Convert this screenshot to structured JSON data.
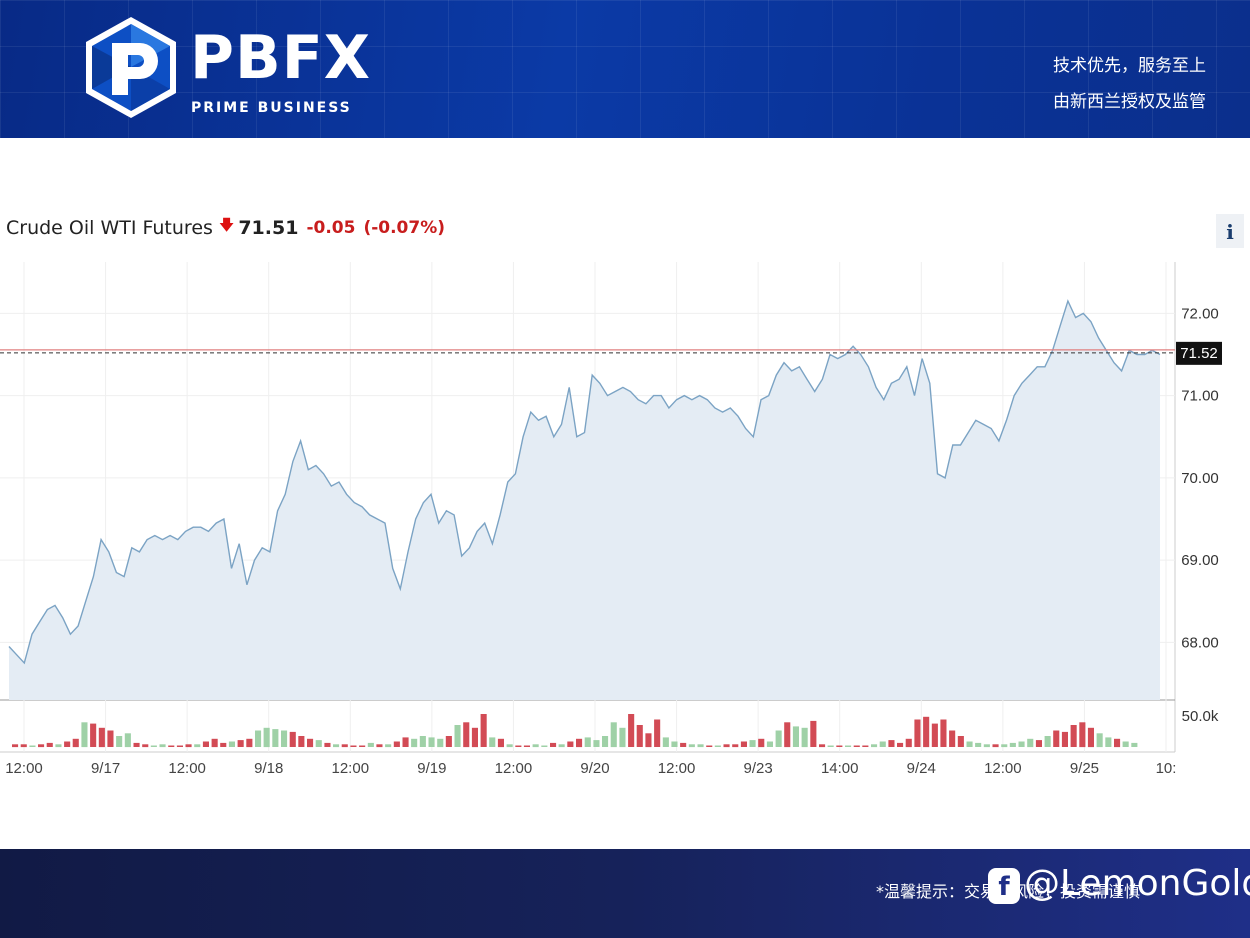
{
  "header": {
    "brand": "PBFX",
    "brand_sub": "PRIME BUSINESS",
    "slogan_line1": "技术优先，服务至上",
    "slogan_line2": "由新西兰授权及监管"
  },
  "instrument": {
    "name": "Crude Oil WTI Futures",
    "direction_icon": "down-arrow-icon",
    "price": "71.51",
    "change": "-0.05",
    "change_pct": "(-0.07%)",
    "info_label": "i"
  },
  "colors": {
    "header_bg": "#0b3aa6",
    "line": "#7ba3c4",
    "area": "#e4ecf4",
    "down": "#d24b55",
    "up": "#9fd1a7",
    "reference_line": "#e08080",
    "last_price_label_bg": "#111111"
  },
  "chart_data": {
    "type": "area",
    "title": "Crude Oil WTI Futures",
    "ylim": [
      67.3,
      72.6
    ],
    "y_ticks": [
      "72.00",
      "71.00",
      "70.00",
      "69.00",
      "68.00"
    ],
    "last_price_label": "71.52",
    "last_price_value": 71.52,
    "volume_tick": "50.0k",
    "x_tick_labels": [
      "12:00",
      "9/17",
      "12:00",
      "9/18",
      "12:00",
      "9/19",
      "12:00",
      "9/20",
      "12:00",
      "9/23",
      "14:00",
      "9/24",
      "12:00",
      "9/25",
      "10:"
    ],
    "grid": true,
    "legend": "none",
    "price": [
      67.95,
      67.85,
      67.75,
      68.1,
      68.25,
      68.4,
      68.45,
      68.3,
      68.1,
      68.2,
      68.5,
      68.8,
      69.25,
      69.1,
      68.85,
      68.8,
      69.15,
      69.1,
      69.25,
      69.3,
      69.25,
      69.3,
      69.25,
      69.35,
      69.4,
      69.4,
      69.35,
      69.45,
      69.5,
      68.9,
      69.2,
      68.7,
      69.0,
      69.15,
      69.1,
      69.6,
      69.8,
      70.2,
      70.45,
      70.1,
      70.15,
      70.05,
      69.9,
      69.95,
      69.8,
      69.7,
      69.65,
      69.55,
      69.5,
      69.45,
      68.9,
      68.65,
      69.1,
      69.5,
      69.7,
      69.8,
      69.45,
      69.6,
      69.55,
      69.05,
      69.15,
      69.35,
      69.45,
      69.2,
      69.55,
      69.95,
      70.05,
      70.5,
      70.8,
      70.7,
      70.75,
      70.5,
      70.65,
      71.1,
      70.5,
      70.55,
      71.25,
      71.15,
      71.0,
      71.05,
      71.1,
      71.05,
      70.95,
      70.9,
      71.0,
      71.0,
      70.85,
      70.95,
      71.0,
      70.95,
      71.0,
      70.95,
      70.85,
      70.8,
      70.85,
      70.75,
      70.6,
      70.5,
      70.95,
      71.0,
      71.25,
      71.4,
      71.3,
      71.35,
      71.2,
      71.05,
      71.2,
      71.5,
      71.45,
      71.5,
      71.6,
      71.5,
      71.35,
      71.1,
      70.95,
      71.15,
      71.2,
      71.35,
      71.0,
      71.45,
      71.15,
      70.05,
      70.0,
      70.4,
      70.4,
      70.55,
      70.7,
      70.65,
      70.6,
      70.45,
      70.7,
      71.0,
      71.15,
      71.25,
      71.35,
      71.35,
      71.55,
      71.85,
      72.15,
      71.95,
      72.0,
      71.9,
      71.7,
      71.55,
      71.4,
      71.3,
      71.55,
      71.5,
      71.5,
      71.55,
      71.5
    ],
    "volume": [
      0.1,
      0.1,
      0.05,
      0.1,
      0.15,
      0.1,
      0.2,
      0.3,
      0.9,
      0.85,
      0.7,
      0.6,
      0.4,
      0.5,
      0.15,
      0.1,
      0.05,
      0.1,
      0.05,
      0.05,
      0.1,
      0.1,
      0.2,
      0.3,
      0.15,
      0.2,
      0.25,
      0.3,
      0.6,
      0.7,
      0.65,
      0.6,
      0.55,
      0.4,
      0.3,
      0.25,
      0.15,
      0.1,
      0.1,
      0.05,
      0.05,
      0.15,
      0.1,
      0.1,
      0.2,
      0.35,
      0.3,
      0.4,
      0.35,
      0.3,
      0.4,
      0.8,
      0.9,
      0.7,
      1.2,
      0.35,
      0.3,
      0.1,
      0.05,
      0.05,
      0.1,
      0.05,
      0.15,
      0.1,
      0.2,
      0.3,
      0.35,
      0.25,
      0.4,
      0.9,
      0.7,
      1.2,
      0.8,
      0.5,
      1.0,
      0.35,
      0.2,
      0.15,
      0.1,
      0.1,
      0.05,
      0.05,
      0.1,
      0.1,
      0.2,
      0.25,
      0.3,
      0.2,
      0.6,
      0.9,
      0.75,
      0.7,
      0.95,
      0.1,
      0.05,
      0.05,
      0.05,
      0.05,
      0.05,
      0.1,
      0.2,
      0.25,
      0.15,
      0.3,
      1.0,
      1.1,
      0.85,
      1.0,
      0.6,
      0.4,
      0.2,
      0.15,
      0.1,
      0.1,
      0.1,
      0.15,
      0.2,
      0.3,
      0.25,
      0.4,
      0.6,
      0.55,
      0.8,
      0.9,
      0.7,
      0.5,
      0.35,
      0.3,
      0.2,
      0.15
    ],
    "volume_up": [
      0,
      0,
      1,
      0,
      0,
      1,
      0,
      0,
      1,
      0,
      0,
      0,
      1,
      1,
      0,
      0,
      1,
      1,
      0,
      0,
      0,
      1,
      0,
      0,
      0,
      1,
      0,
      0,
      1,
      1,
      1,
      1,
      0,
      0,
      0,
      1,
      0,
      1,
      0,
      0,
      0,
      1,
      0,
      1,
      0,
      0,
      1,
      1,
      1,
      1,
      0,
      1,
      0,
      0,
      0,
      1,
      0,
      1,
      0,
      0,
      1,
      1,
      0,
      1,
      0,
      0,
      1,
      1,
      1,
      1,
      1,
      0,
      0,
      0,
      0,
      1,
      1,
      0,
      1,
      1,
      0,
      1,
      0,
      0,
      0,
      1,
      0,
      1,
      1,
      0,
      1,
      1,
      0,
      0,
      1,
      0,
      1,
      0,
      0,
      1,
      1,
      0,
      0,
      0,
      0,
      0,
      0,
      0,
      0,
      0,
      1,
      1,
      1,
      0,
      1,
      1,
      1,
      1,
      0,
      1,
      0,
      0,
      0,
      0,
      0,
      1,
      1,
      0,
      1,
      1
    ]
  },
  "footer": {
    "note": "*温馨提示：交易有风险，投资需谨慎",
    "watermark_icon": "f",
    "watermark": "@LemonGold"
  }
}
